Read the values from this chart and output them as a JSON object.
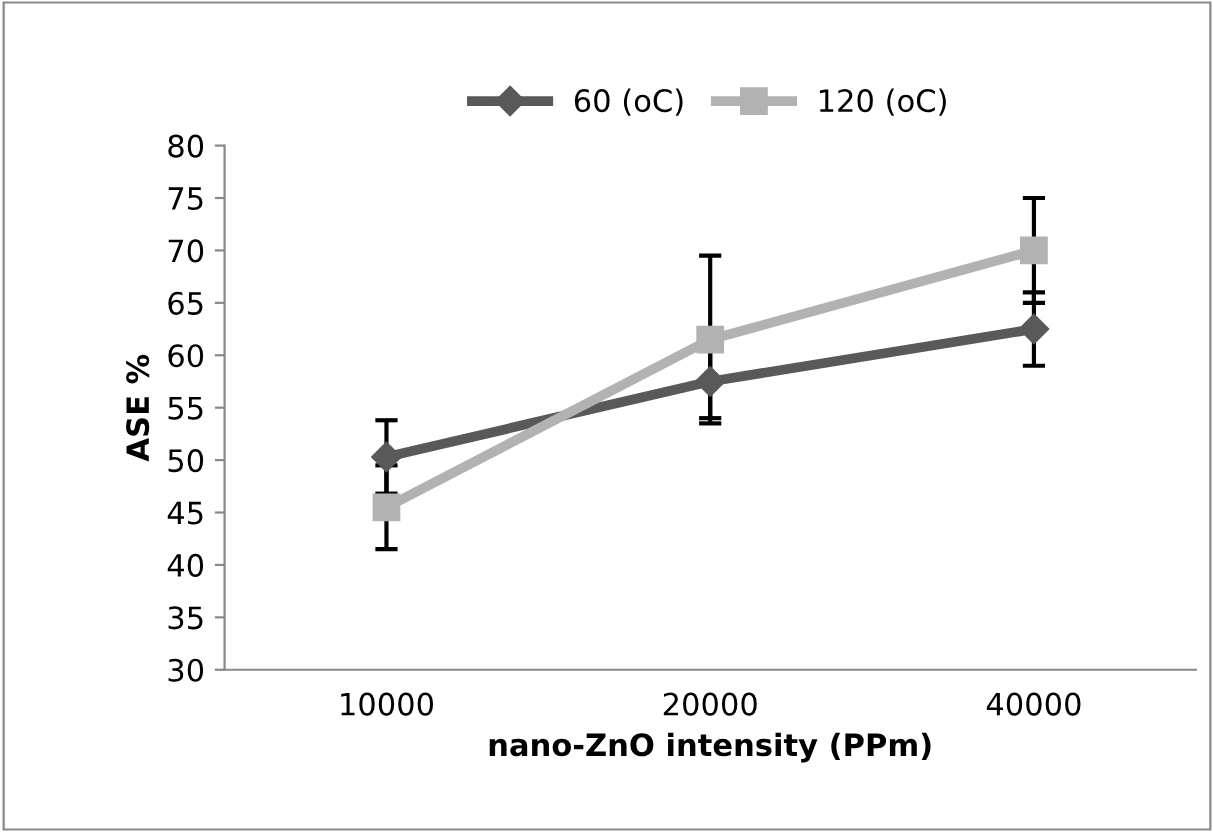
{
  "chart_data": {
    "type": "line",
    "xlabel": "nano-ZnO intensity (PPm)",
    "ylabel": "ASE %",
    "categories": [
      "10000",
      "20000",
      "40000"
    ],
    "series": [
      {
        "name": "60 (oC)",
        "color": "#595959",
        "marker": "diamond",
        "values": [
          50.3,
          57.5,
          62.5
        ],
        "errors": [
          3.5,
          3.5,
          3.5
        ]
      },
      {
        "name": "120 (oC)",
        "color": "#b2b2b2",
        "marker": "square",
        "values": [
          45.5,
          61.5,
          70
        ],
        "errors": [
          4,
          8,
          5
        ]
      }
    ],
    "ylim": [
      30,
      80
    ],
    "yticks": [
      30,
      35,
      40,
      45,
      50,
      55,
      60,
      65,
      70,
      75,
      80
    ],
    "grid": false,
    "legend": "top",
    "line_style": "solid"
  }
}
